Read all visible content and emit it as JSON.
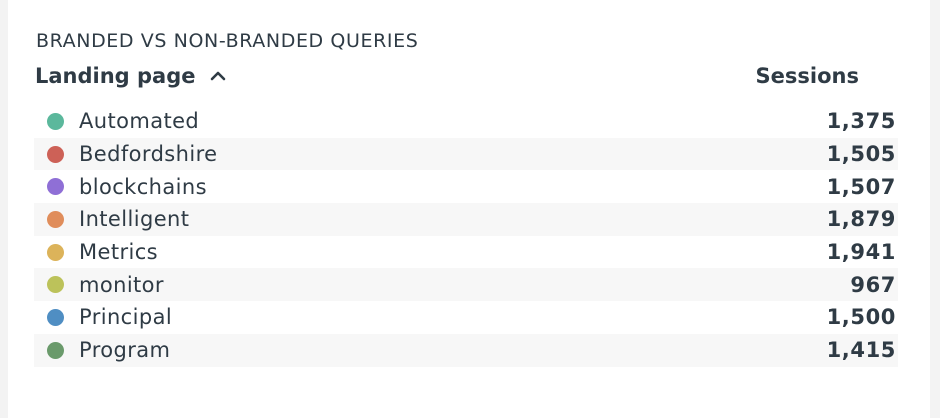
{
  "widget": {
    "title": "BRANDED VS NON-BRANDED QUERIES"
  },
  "table": {
    "columns": {
      "landing_page": "Landing page",
      "sessions": "Sessions"
    },
    "sort": {
      "column": "Landing page",
      "direction": "ascending",
      "icon": "chevron-up-icon"
    },
    "rows": [
      {
        "label": "Automated",
        "value": "1,375",
        "color": "#5bb89c"
      },
      {
        "label": "Bedfordshire",
        "value": "1,505",
        "color": "#cd6157"
      },
      {
        "label": "blockchains",
        "value": "1,507",
        "color": "#8f6fd6"
      },
      {
        "label": "Intelligent",
        "value": "1,879",
        "color": "#e08d5b"
      },
      {
        "label": "Metrics",
        "value": "1,941",
        "color": "#dcb35a"
      },
      {
        "label": "monitor",
        "value": "967",
        "color": "#bcc25a"
      },
      {
        "label": "Principal",
        "value": "1,500",
        "color": "#4f8ec3"
      },
      {
        "label": "Program",
        "value": "1,415",
        "color": "#6a9a6b"
      }
    ]
  }
}
